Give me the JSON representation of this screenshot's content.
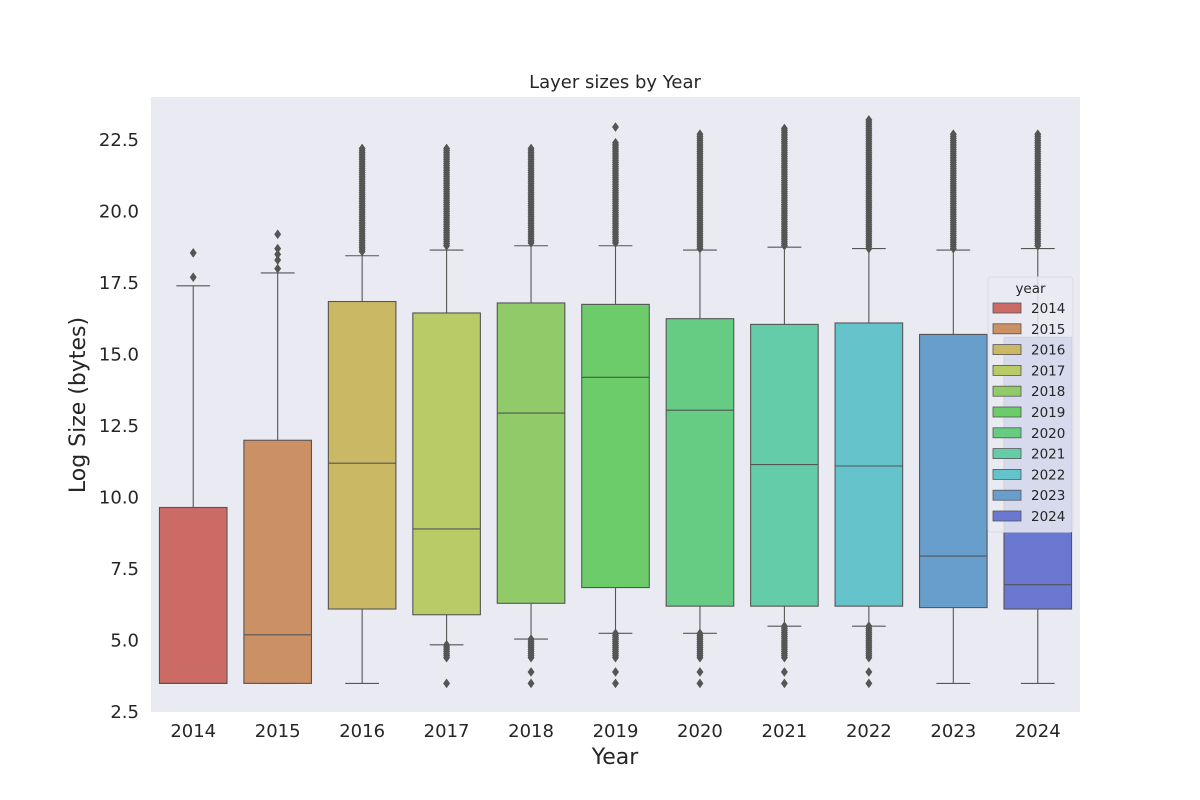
{
  "chart_data": {
    "type": "box",
    "title": "Layer sizes by Year",
    "xlabel": "Year",
    "ylabel": "Log Size (bytes)",
    "ylim": [
      2.5,
      24.0
    ],
    "yticks": [
      "2.5",
      "5.0",
      "7.5",
      "10.0",
      "12.5",
      "15.0",
      "17.5",
      "20.0",
      "22.5"
    ],
    "grid": false,
    "legend": {
      "title": "year",
      "placement": "right"
    },
    "categories": [
      "2014",
      "2015",
      "2016",
      "2017",
      "2018",
      "2019",
      "2020",
      "2021",
      "2022",
      "2023",
      "2024"
    ],
    "colors": [
      "#cc6b65",
      "#cb9064",
      "#cbb865",
      "#b8cb66",
      "#91cb69",
      "#6ccc69",
      "#66cb83",
      "#65cca9",
      "#65c3cb",
      "#689ecc",
      "#6a78d1"
    ],
    "boxes": [
      {
        "category": "2014",
        "whisker_low": 3.5,
        "q1": 3.5,
        "median": 3.5,
        "q3": 9.65,
        "whisker_high": 17.4,
        "outliers": [
          17.7,
          18.55
        ]
      },
      {
        "category": "2015",
        "whisker_low": 3.5,
        "q1": 3.5,
        "median": 5.2,
        "q3": 12.0,
        "whisker_high": 17.85,
        "outliers": [
          18.0,
          18.3,
          18.5,
          18.7,
          19.2
        ]
      },
      {
        "category": "2016",
        "whisker_low": 3.5,
        "q1": 6.1,
        "median": 11.2,
        "q3": 16.85,
        "whisker_high": 18.45,
        "outliers_high_range": [
          18.6,
          22.2
        ]
      },
      {
        "category": "2017",
        "whisker_low": 4.85,
        "q1": 5.9,
        "median": 8.9,
        "q3": 16.45,
        "whisker_high": 18.65,
        "outliers": [
          3.5
        ],
        "outliers_low_range": [
          4.4,
          4.85
        ],
        "outliers_high_range": [
          18.8,
          22.2
        ]
      },
      {
        "category": "2018",
        "whisker_low": 5.05,
        "q1": 6.3,
        "median": 12.95,
        "q3": 16.8,
        "whisker_high": 18.8,
        "outliers": [
          3.5,
          3.9
        ],
        "outliers_low_range": [
          4.4,
          5.05
        ],
        "outliers_high_range": [
          18.9,
          22.2
        ]
      },
      {
        "category": "2019",
        "whisker_low": 5.25,
        "q1": 6.85,
        "median": 14.2,
        "q3": 16.75,
        "whisker_high": 18.8,
        "outliers": [
          3.5,
          3.9,
          22.95
        ],
        "outliers_low_range": [
          4.4,
          5.25
        ],
        "outliers_high_range": [
          18.9,
          22.4
        ]
      },
      {
        "category": "2020",
        "whisker_low": 5.25,
        "q1": 6.2,
        "median": 13.05,
        "q3": 16.25,
        "whisker_high": 18.65,
        "outliers": [
          3.5,
          3.9
        ],
        "outliers_low_range": [
          4.4,
          5.25
        ],
        "outliers_high_range": [
          18.7,
          22.7
        ]
      },
      {
        "category": "2021",
        "whisker_low": 5.5,
        "q1": 6.2,
        "median": 11.15,
        "q3": 16.05,
        "whisker_high": 18.75,
        "outliers": [
          3.5,
          3.9
        ],
        "outliers_low_range": [
          4.4,
          5.5
        ],
        "outliers_high_range": [
          18.8,
          22.9
        ]
      },
      {
        "category": "2022",
        "whisker_low": 5.5,
        "q1": 6.2,
        "median": 11.1,
        "q3": 16.1,
        "whisker_high": 18.7,
        "outliers": [
          3.5,
          3.9
        ],
        "outliers_low_range": [
          4.4,
          5.5
        ],
        "outliers_high_range": [
          18.7,
          23.2
        ]
      },
      {
        "category": "2023",
        "whisker_low": 3.5,
        "q1": 6.15,
        "median": 7.95,
        "q3": 15.7,
        "whisker_high": 18.65,
        "outliers_high_range": [
          18.7,
          22.7
        ]
      },
      {
        "category": "2024",
        "whisker_low": 3.5,
        "q1": 6.1,
        "median": 6.95,
        "q3": 15.6,
        "whisker_high": 18.7,
        "outliers_high_range": [
          18.8,
          22.7
        ]
      }
    ]
  }
}
